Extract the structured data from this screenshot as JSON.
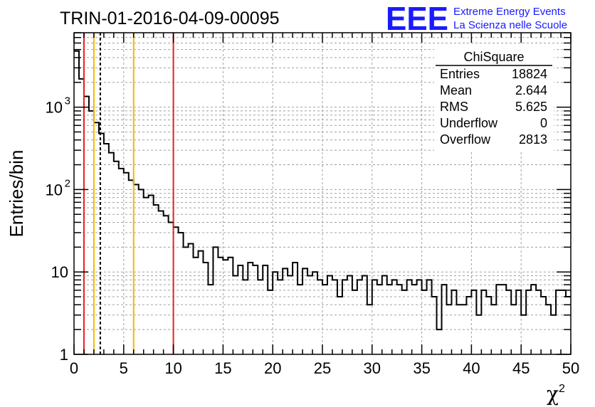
{
  "header": {
    "run_title": "TRIN-01-2016-04-09-00095",
    "logo_text": "EEE",
    "logo_line1": "Extreme Energy Events",
    "logo_line2": "La Scienza nelle Scuole",
    "logo_color": "#1a1aff"
  },
  "stats_box": {
    "name": "ChiSquare",
    "rows": [
      {
        "label": "Entries",
        "value": "18824"
      },
      {
        "label": "Mean",
        "value": "2.644"
      },
      {
        "label": "RMS",
        "value": "5.625"
      },
      {
        "label": "Underflow",
        "value": "0"
      },
      {
        "label": "Overflow",
        "value": "2813"
      }
    ]
  },
  "chart_data": {
    "type": "histogram",
    "title": "TRIN-01-2016-04-09-00095",
    "xlabel": "χ",
    "xlabel_sup": "2",
    "ylabel": "Entries/bin",
    "xlim": [
      0,
      50
    ],
    "ylim": [
      1,
      8000
    ],
    "yscale": "log",
    "grid": true,
    "bin_width": 0.5,
    "x_ticks": [
      "0",
      "5",
      "10",
      "15",
      "20",
      "25",
      "30",
      "35",
      "40",
      "45",
      "50"
    ],
    "x_tick_values": [
      0,
      5,
      10,
      15,
      20,
      25,
      30,
      35,
      40,
      45,
      50
    ],
    "y_ticks": [
      "1",
      "10",
      "10",
      "10"
    ],
    "y_tick_sups": [
      "",
      "",
      "2",
      "3"
    ],
    "y_tick_values": [
      1,
      10,
      100,
      1000
    ],
    "values": [
      4800,
      2200,
      1350,
      900,
      650,
      480,
      360,
      280,
      220,
      180,
      160,
      130,
      115,
      100,
      80,
      85,
      65,
      55,
      48,
      40,
      35,
      30,
      20,
      22,
      15,
      18,
      13,
      7,
      20,
      15,
      14,
      15,
      9,
      12,
      8,
      13,
      12,
      8,
      12,
      6,
      10,
      8,
      11,
      9,
      13,
      7,
      11,
      9,
      10,
      8,
      7,
      9,
      8,
      5,
      8,
      9,
      6,
      8,
      9,
      4,
      8,
      7,
      9,
      7,
      8,
      7,
      6,
      8,
      7,
      8,
      6,
      8,
      5,
      2,
      7,
      4,
      6,
      4,
      4,
      5,
      6,
      3,
      6,
      5,
      4,
      7,
      7,
      6,
      4,
      6,
      3,
      6,
      7,
      6,
      5,
      4,
      3,
      6,
      6,
      5
    ],
    "vertical_lines": [
      {
        "x": 1,
        "color": "#e8201c",
        "style": "solid"
      },
      {
        "x": 2,
        "color": "#f5b800",
        "style": "solid"
      },
      {
        "x": 2.644,
        "color": "#000000",
        "style": "dashed"
      },
      {
        "x": 6,
        "color": "#f5b800",
        "style": "solid"
      },
      {
        "x": 10,
        "color": "#e8201c",
        "style": "solid"
      }
    ]
  }
}
